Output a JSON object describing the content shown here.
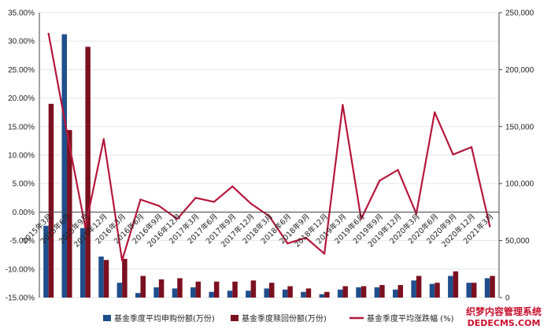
{
  "chart_data": {
    "type": "bar",
    "title": "",
    "xlabel": "",
    "ylabel": "",
    "categories": [
      "2015年3月",
      "2015年6月",
      "2015年9月",
      "2015年12月",
      "2016年3月",
      "2016年6月",
      "2016年9月",
      "2016年12月",
      "2017年3月",
      "2017年6月",
      "2017年9月",
      "2017年12月",
      "2018年3月",
      "2018年6月",
      "2018年9月",
      "2018年12月",
      "2019年3月",
      "2019年6月",
      "2019年9月",
      "2019年12月",
      "2020年3月",
      "2020年6月",
      "2020年9月",
      "2020年12月",
      "2021年3月"
    ],
    "left_axis": {
      "min": -0.15,
      "max": 0.35,
      "step": 0.05,
      "ticks": [
        "35.00%",
        "30.00%",
        "25.00%",
        "20.00%",
        "15.00%",
        "10.00%",
        "5.00%",
        "0.00%",
        "-5.00%",
        "-10.00%",
        "-15.00%"
      ]
    },
    "right_axis": {
      "min": 0,
      "max": 250000,
      "step": 50000,
      "ticks": [
        "250,000",
        "200,000",
        "150,000",
        "100,000",
        "50,000",
        "0"
      ]
    },
    "series": [
      {
        "name": "基金季度平均申购份额(万份)",
        "kind": "bar",
        "axis": "right",
        "color": "#1f4e8c",
        "values": [
          63000,
          231000,
          61000,
          36000,
          13000,
          4000,
          9000,
          8000,
          9000,
          5000,
          6000,
          6000,
          8000,
          7000,
          5000,
          3000,
          7000,
          9000,
          9000,
          7000,
          15000,
          12000,
          19000,
          13000,
          17000
        ]
      },
      {
        "name": "基金季度赎回份额(万份)",
        "kind": "bar",
        "axis": "right",
        "color": "#7b1020",
        "values": [
          170000,
          147000,
          220000,
          33000,
          34000,
          19000,
          16000,
          17000,
          14000,
          14000,
          14000,
          15000,
          13000,
          10000,
          8000,
          5000,
          10000,
          10000,
          11000,
          11000,
          19000,
          13000,
          23000,
          13000,
          19000
        ]
      },
      {
        "name": "基金季度平均涨跌幅 (%)",
        "kind": "line",
        "axis": "left",
        "color": "#b5173b",
        "values": [
          0.313,
          0.14,
          -0.027,
          0.128,
          -0.085,
          0.022,
          0.011,
          -0.012,
          0.025,
          0.018,
          0.045,
          0.015,
          -0.007,
          -0.055,
          -0.045,
          -0.073,
          0.188,
          -0.012,
          0.055,
          0.074,
          -0.003,
          0.175,
          0.101,
          0.114,
          -0.025
        ]
      }
    ],
    "legend_position": "bottom"
  },
  "watermark": {
    "line1": "织梦内容管理系统",
    "line2": "DEDECMS.COM"
  }
}
